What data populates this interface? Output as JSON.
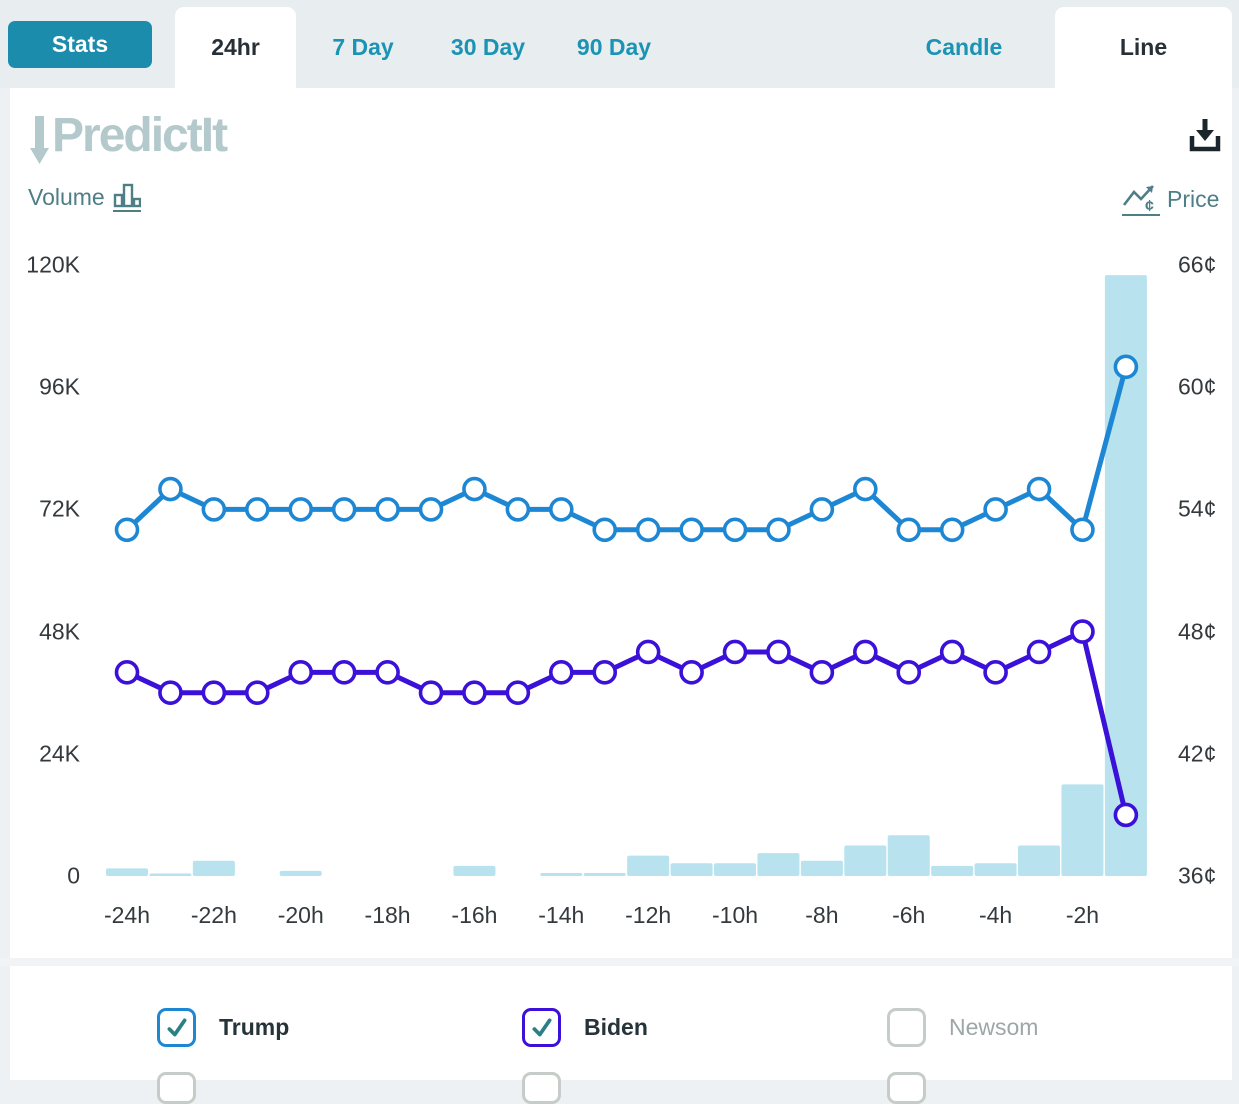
{
  "header": {
    "stats_button": "Stats",
    "time_tabs": [
      {
        "label": "24hr",
        "active": true
      },
      {
        "label": "7 Day",
        "active": false
      },
      {
        "label": "30 Day",
        "active": false
      },
      {
        "label": "90 Day",
        "active": false
      }
    ],
    "type_tabs": [
      {
        "label": "Candle",
        "active": false
      },
      {
        "label": "Line",
        "active": true
      }
    ]
  },
  "toolbar": {
    "logo_text": "PredictIt",
    "volume_label": "Volume",
    "price_label": "Price"
  },
  "chart_data": {
    "type": "line",
    "subtype": "dual-axis price lines with volume bars",
    "title": "",
    "grid": false,
    "x_hours": [
      -24,
      -23,
      -22,
      -21,
      -20,
      -19,
      -18,
      -17,
      -16,
      -15,
      -14,
      -13,
      -12,
      -11,
      -10,
      -9,
      -8,
      -7,
      -6,
      -5,
      -4,
      -3,
      -2,
      -1
    ],
    "x_tick_labels": [
      "-24h",
      "-22h",
      "-20h",
      "-18h",
      "-16h",
      "-14h",
      "-12h",
      "-10h",
      "-8h",
      "-6h",
      "-4h",
      "-2h"
    ],
    "left_axis": {
      "label": "Volume",
      "tick_labels": [
        "120K",
        "96K",
        "72K",
        "48K",
        "24K",
        "0"
      ],
      "range": [
        0,
        120000
      ]
    },
    "right_axis": {
      "label": "Price",
      "tick_labels": [
        "66¢",
        "60¢",
        "54¢",
        "48¢",
        "42¢",
        "36¢"
      ],
      "range": [
        36,
        66
      ],
      "unit": "¢"
    },
    "series": [
      {
        "name": "Trump",
        "type": "line",
        "axis": "right",
        "color": "#1e87d4",
        "values": [
          53,
          55,
          54,
          54,
          54,
          54,
          54,
          54,
          55,
          54,
          54,
          53,
          53,
          53,
          53,
          53,
          54,
          55,
          53,
          53,
          54,
          55,
          53,
          61
        ]
      },
      {
        "name": "Biden",
        "type": "line",
        "axis": "right",
        "color": "#3b10d8",
        "values": [
          46,
          45,
          45,
          45,
          46,
          46,
          46,
          45,
          45,
          45,
          46,
          46,
          47,
          46,
          47,
          47,
          46,
          47,
          46,
          47,
          46,
          47,
          48,
          39
        ]
      },
      {
        "name": "Volume",
        "type": "bar",
        "axis": "left",
        "color": "#b7e2ee",
        "values": [
          1500,
          500,
          3000,
          0,
          1000,
          0,
          0,
          0,
          2000,
          0,
          600,
          600,
          4000,
          2500,
          2500,
          4500,
          3000,
          6000,
          8000,
          2000,
          2500,
          6000,
          18000,
          118000
        ]
      }
    ],
    "legend_position": "bottom"
  },
  "legend": {
    "items": [
      {
        "label": "Trump",
        "checked": true,
        "accent": "#1e87d4"
      },
      {
        "label": "Biden",
        "checked": true,
        "accent": "#3b10d8"
      },
      {
        "label": "Newsom",
        "checked": false,
        "accent": "#c6ccc8"
      }
    ]
  },
  "colors": {
    "teal_button": "#1b8cab",
    "tab_text": "#1b93b4",
    "active_tab_text": "#263036",
    "logo": "#b4c9cc",
    "toggle_label": "#4e7e86",
    "axis_text": "#33393d",
    "volume_bar": "#b7e2ee",
    "trump_line": "#1e87d4",
    "biden_line": "#3b10d8",
    "checkmark": "#2b7f86"
  }
}
